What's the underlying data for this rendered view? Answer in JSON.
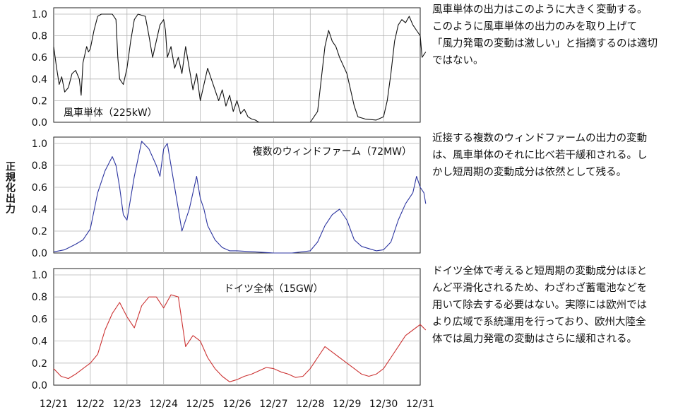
{
  "ylabel": "正規化出力",
  "chart_data": {
    "type": "line",
    "ylabel": "正規化出力",
    "x_ticks": [
      "12/21",
      "12/22",
      "12/23",
      "12/24",
      "12/25",
      "12/26",
      "12/27",
      "12/28",
      "12/29",
      "12/30",
      "12/31"
    ],
    "panels": [
      {
        "label": "風車単体（225kW）",
        "label_position": "bottom-left",
        "color": "#111111",
        "ylim": [
          0,
          1.0
        ],
        "y_ticks": [
          "1.0",
          "0.8",
          "0.6",
          "0.4",
          "0.2",
          "0.0"
        ],
        "points": [
          [
            0.0,
            0.7
          ],
          [
            0.08,
            0.5
          ],
          [
            0.15,
            0.35
          ],
          [
            0.22,
            0.42
          ],
          [
            0.3,
            0.28
          ],
          [
            0.4,
            0.32
          ],
          [
            0.5,
            0.45
          ],
          [
            0.6,
            0.48
          ],
          [
            0.7,
            0.4
          ],
          [
            0.75,
            0.25
          ],
          [
            0.8,
            0.55
          ],
          [
            0.9,
            0.7
          ],
          [
            0.95,
            0.65
          ],
          [
            1.0,
            0.68
          ],
          [
            1.1,
            0.85
          ],
          [
            1.2,
            0.98
          ],
          [
            1.3,
            1.0
          ],
          [
            1.6,
            1.0
          ],
          [
            1.7,
            0.95
          ],
          [
            1.75,
            0.6
          ],
          [
            1.8,
            0.4
          ],
          [
            1.9,
            0.35
          ],
          [
            2.0,
            0.5
          ],
          [
            2.1,
            0.75
          ],
          [
            2.2,
            0.95
          ],
          [
            2.3,
            1.0
          ],
          [
            2.5,
            0.98
          ],
          [
            2.6,
            0.8
          ],
          [
            2.7,
            0.6
          ],
          [
            2.8,
            0.75
          ],
          [
            2.9,
            0.9
          ],
          [
            3.0,
            0.95
          ],
          [
            3.05,
            0.85
          ],
          [
            3.1,
            0.6
          ],
          [
            3.2,
            0.7
          ],
          [
            3.3,
            0.5
          ],
          [
            3.4,
            0.6
          ],
          [
            3.5,
            0.45
          ],
          [
            3.6,
            0.7
          ],
          [
            3.7,
            0.5
          ],
          [
            3.8,
            0.3
          ],
          [
            3.9,
            0.45
          ],
          [
            4.0,
            0.2
          ],
          [
            4.1,
            0.35
          ],
          [
            4.2,
            0.5
          ],
          [
            4.3,
            0.4
          ],
          [
            4.4,
            0.3
          ],
          [
            4.5,
            0.2
          ],
          [
            4.6,
            0.3
          ],
          [
            4.7,
            0.15
          ],
          [
            4.8,
            0.25
          ],
          [
            4.9,
            0.1
          ],
          [
            5.0,
            0.2
          ],
          [
            5.1,
            0.08
          ],
          [
            5.2,
            0.12
          ],
          [
            5.3,
            0.05
          ],
          [
            5.4,
            0.03
          ],
          [
            5.5,
            0.02
          ],
          [
            5.6,
            0.0
          ],
          [
            5.8,
            0.0
          ],
          [
            6.0,
            0.0
          ],
          [
            6.4,
            0.0
          ],
          [
            6.8,
            0.0
          ],
          [
            7.0,
            0.0
          ],
          [
            7.2,
            0.1
          ],
          [
            7.3,
            0.4
          ],
          [
            7.4,
            0.7
          ],
          [
            7.5,
            0.85
          ],
          [
            7.6,
            0.75
          ],
          [
            7.7,
            0.7
          ],
          [
            7.8,
            0.6
          ],
          [
            8.0,
            0.45
          ],
          [
            8.1,
            0.3
          ],
          [
            8.2,
            0.15
          ],
          [
            8.3,
            0.05
          ],
          [
            8.5,
            0.03
          ],
          [
            8.8,
            0.02
          ],
          [
            9.0,
            0.05
          ],
          [
            9.1,
            0.2
          ],
          [
            9.2,
            0.45
          ],
          [
            9.3,
            0.75
          ],
          [
            9.4,
            0.9
          ],
          [
            9.5,
            0.95
          ],
          [
            9.6,
            0.92
          ],
          [
            9.7,
            0.98
          ],
          [
            9.8,
            0.9
          ],
          [
            9.9,
            0.85
          ],
          [
            10.0,
            0.8
          ],
          [
            10.05,
            0.6
          ],
          [
            10.15,
            0.65
          ]
        ]
      },
      {
        "label": "複数のウィンドファーム（72MW）",
        "label_position": "top-right",
        "color": "#2c35a0",
        "ylim": [
          0,
          1.0
        ],
        "y_ticks": [
          "1.0",
          "0.8",
          "0.6",
          "0.4",
          "0.2",
          "0.0"
        ],
        "points": [
          [
            0.0,
            0.01
          ],
          [
            0.3,
            0.03
          ],
          [
            0.6,
            0.08
          ],
          [
            0.8,
            0.12
          ],
          [
            1.0,
            0.22
          ],
          [
            1.2,
            0.55
          ],
          [
            1.4,
            0.75
          ],
          [
            1.6,
            0.88
          ],
          [
            1.7,
            0.8
          ],
          [
            1.8,
            0.6
          ],
          [
            1.9,
            0.35
          ],
          [
            2.0,
            0.3
          ],
          [
            2.1,
            0.5
          ],
          [
            2.2,
            0.7
          ],
          [
            2.4,
            1.02
          ],
          [
            2.6,
            0.95
          ],
          [
            2.8,
            0.8
          ],
          [
            2.9,
            0.7
          ],
          [
            3.0,
            0.95
          ],
          [
            3.1,
            1.0
          ],
          [
            3.2,
            0.8
          ],
          [
            3.3,
            0.6
          ],
          [
            3.4,
            0.4
          ],
          [
            3.5,
            0.2
          ],
          [
            3.6,
            0.3
          ],
          [
            3.7,
            0.4
          ],
          [
            3.8,
            0.55
          ],
          [
            3.9,
            0.7
          ],
          [
            4.0,
            0.5
          ],
          [
            4.1,
            0.4
          ],
          [
            4.2,
            0.25
          ],
          [
            4.4,
            0.12
          ],
          [
            4.6,
            0.05
          ],
          [
            4.8,
            0.02
          ],
          [
            5.0,
            0.02
          ],
          [
            5.5,
            0.01
          ],
          [
            6.0,
            0.0
          ],
          [
            6.5,
            0.0
          ],
          [
            7.0,
            0.02
          ],
          [
            7.2,
            0.1
          ],
          [
            7.4,
            0.25
          ],
          [
            7.6,
            0.35
          ],
          [
            7.8,
            0.4
          ],
          [
            8.0,
            0.3
          ],
          [
            8.2,
            0.12
          ],
          [
            8.4,
            0.06
          ],
          [
            8.6,
            0.04
          ],
          [
            8.8,
            0.02
          ],
          [
            9.0,
            0.03
          ],
          [
            9.2,
            0.1
          ],
          [
            9.4,
            0.3
          ],
          [
            9.6,
            0.45
          ],
          [
            9.8,
            0.55
          ],
          [
            9.9,
            0.7
          ],
          [
            10.0,
            0.6
          ],
          [
            10.1,
            0.55
          ],
          [
            10.15,
            0.45
          ]
        ]
      },
      {
        "label": "ドイツ全体（15GW）",
        "label_position": "top-center",
        "color": "#cc3333",
        "ylim": [
          0,
          1.0
        ],
        "y_ticks": [
          "1.0",
          "0.8",
          "0.6",
          "0.4",
          "0.2",
          "0.0"
        ],
        "points": [
          [
            0.0,
            0.15
          ],
          [
            0.2,
            0.08
          ],
          [
            0.4,
            0.06
          ],
          [
            0.6,
            0.1
          ],
          [
            0.8,
            0.15
          ],
          [
            1.0,
            0.2
          ],
          [
            1.2,
            0.28
          ],
          [
            1.4,
            0.5
          ],
          [
            1.6,
            0.65
          ],
          [
            1.8,
            0.75
          ],
          [
            2.0,
            0.62
          ],
          [
            2.2,
            0.52
          ],
          [
            2.4,
            0.72
          ],
          [
            2.6,
            0.8
          ],
          [
            2.8,
            0.8
          ],
          [
            3.0,
            0.7
          ],
          [
            3.2,
            0.82
          ],
          [
            3.4,
            0.8
          ],
          [
            3.6,
            0.35
          ],
          [
            3.8,
            0.45
          ],
          [
            4.0,
            0.4
          ],
          [
            4.2,
            0.25
          ],
          [
            4.4,
            0.15
          ],
          [
            4.6,
            0.08
          ],
          [
            4.8,
            0.03
          ],
          [
            5.0,
            0.05
          ],
          [
            5.2,
            0.08
          ],
          [
            5.4,
            0.1
          ],
          [
            5.6,
            0.13
          ],
          [
            5.8,
            0.16
          ],
          [
            6.0,
            0.15
          ],
          [
            6.2,
            0.12
          ],
          [
            6.4,
            0.1
          ],
          [
            6.6,
            0.07
          ],
          [
            6.8,
            0.08
          ],
          [
            7.0,
            0.15
          ],
          [
            7.2,
            0.25
          ],
          [
            7.4,
            0.35
          ],
          [
            7.6,
            0.3
          ],
          [
            7.8,
            0.25
          ],
          [
            8.0,
            0.2
          ],
          [
            8.2,
            0.15
          ],
          [
            8.4,
            0.1
          ],
          [
            8.6,
            0.08
          ],
          [
            8.8,
            0.1
          ],
          [
            9.0,
            0.15
          ],
          [
            9.2,
            0.25
          ],
          [
            9.4,
            0.35
          ],
          [
            9.6,
            0.45
          ],
          [
            9.8,
            0.5
          ],
          [
            10.0,
            0.55
          ],
          [
            10.15,
            0.5
          ]
        ]
      }
    ]
  },
  "descriptions": [
    [
      "風車単体の出力はこのように大きく変動する。",
      "このように風車単体の出力のみを取り上げて",
      "「風力発電の変動は激しい」と指摘するのは適切",
      "ではない。"
    ],
    [
      "近接する複数のウィンドファームの出力の変動",
      "は、風車単体のそれに比べ若干緩和される。し",
      "かし短周期の変動成分は依然として残る。"
    ],
    [
      "ドイツ全体で考えると短周期の変動成分はほと",
      "んど平滑化されるため、わざわざ蓄電池などを",
      "用いて除去する必要はない。実際には欧州では",
      "より広域で系統運用を行っており、欧州大陸全",
      "体では風力発電の変動はさらに緩和される。"
    ]
  ]
}
